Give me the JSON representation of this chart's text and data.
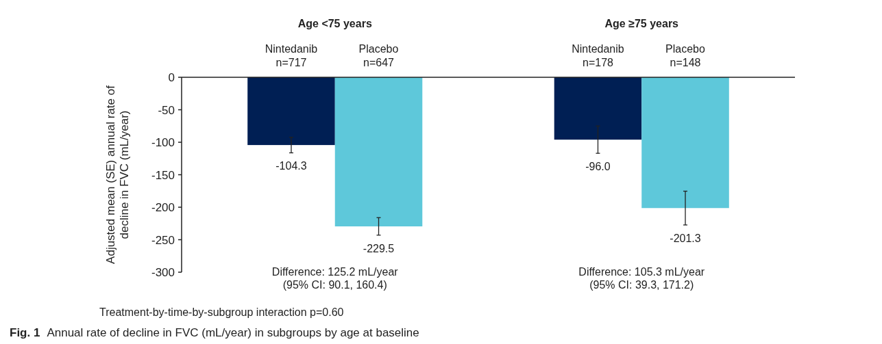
{
  "chart_data": {
    "type": "bar",
    "title": "Fig. 1",
    "subtitle": "Annual rate of decline in FVC (mL/year) in subgroups by age at baseline",
    "ylabel": "Adjusted mean (SE) annual rate of decline in FVC (mL/year)",
    "categories": [
      "Age <75 years",
      "Age ≥75 years"
    ],
    "series": [
      {
        "name": "Nintedanib",
        "color": "#001f54",
        "values": [
          -104.3,
          -96.0
        ],
        "value_labels": [
          "-104.3",
          "-96.0"
        ],
        "errors": [
          12,
          21
        ]
      },
      {
        "name": "Placebo",
        "color": "#5ec8da",
        "values": [
          -229.5,
          -201.3
        ],
        "value_labels": [
          "-229.5",
          "-201.3"
        ],
        "errors": [
          13.5,
          26
        ]
      }
    ],
    "ylim": [
      -300,
      0
    ],
    "yticks": [
      -300,
      -250,
      -200,
      -150,
      -100,
      -50,
      0
    ],
    "grid": false,
    "annotations": [
      {
        "text": "n=717",
        "x": "Age <75 years",
        "y": 0
      },
      {
        "text": "n=647",
        "x": "Age <75 years",
        "y": 0
      },
      {
        "text": "n=178",
        "x": "Age ≥75 years",
        "y": 0
      },
      {
        "text": "n=148",
        "x": "Age ≥75 years",
        "y": 0
      },
      "Difference: 125.2 mL/year\n(95% CI: 90.1, 160.4)",
      "Difference: 105.3 mL/year\n(95% CI: 39.3, 171.2)",
      "Treatment-by-time-by-subgroup interaction p=0.60"
    ]
  }
}
